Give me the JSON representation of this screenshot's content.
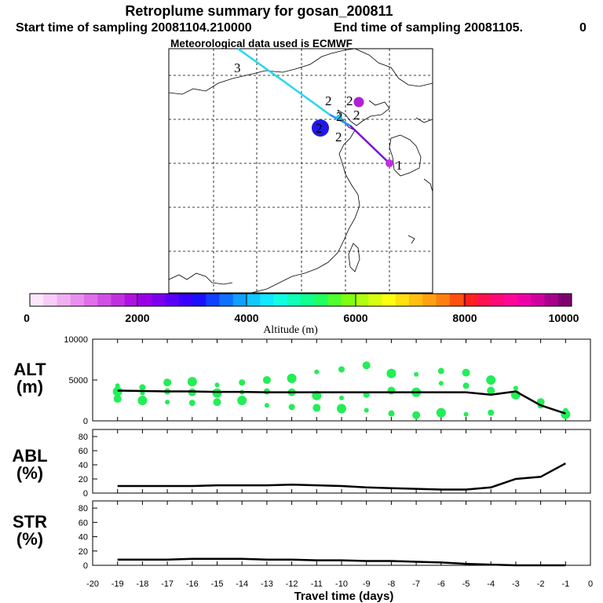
{
  "header": {
    "title": "Retroplume summary for gosan_200811",
    "start_label": "Start time of sampling 20081104.210000",
    "end_label": "End time of sampling 20081105.",
    "end_suffix": "0",
    "met_label": "Meteorological data used is ECMWF"
  },
  "map": {
    "trajectory_colors": [
      "#2a8cff",
      "#7a10d8",
      "#22d8ee"
    ],
    "cluster_labels": [
      "1",
      "2",
      "2",
      "2",
      "2",
      "2",
      "2",
      "3"
    ]
  },
  "colorbar": {
    "xlabel": "Altitude (m)",
    "tick_labels": [
      "0",
      "2000",
      "4000",
      "6000",
      "8000",
      "10000"
    ],
    "colors": [
      "#fde6fd",
      "#f8ccf8",
      "#f0b0f0",
      "#e890ee",
      "#e070e8",
      "#d050e4",
      "#c030e0",
      "#b010e0",
      "#9a00e6",
      "#7a00ee",
      "#5a00f6",
      "#3a00ff",
      "#1a10ff",
      "#1040ff",
      "#1070ff",
      "#10a0ff",
      "#10c8ff",
      "#10e8ff",
      "#10ffe0",
      "#10ffb8",
      "#10ff90",
      "#20ff60",
      "#50ff30",
      "#80ff10",
      "#b0ff10",
      "#d8ff10",
      "#ffff10",
      "#ffe010",
      "#ffc010",
      "#ffa010",
      "#ff8010",
      "#ff5010",
      "#ff2020",
      "#ff1050",
      "#ff0878",
      "#ff0898",
      "#f000a8",
      "#d000a0",
      "#a8008e",
      "#800070"
    ]
  },
  "chart_data": [
    {
      "type": "line",
      "id": "alt",
      "ylabel": "ALT\n(m)",
      "ylim": [
        0,
        10000
      ],
      "y_ticks": [
        0,
        5000,
        10000
      ],
      "x": [
        -19,
        -18,
        -17,
        -16,
        -15,
        -14,
        -13,
        -12,
        -11,
        -10,
        -9,
        -8,
        -7,
        -6,
        -5,
        -4,
        -3,
        -2,
        -1
      ],
      "values": [
        3700,
        3650,
        3600,
        3600,
        3550,
        3550,
        3500,
        3500,
        3500,
        3500,
        3500,
        3500,
        3500,
        3500,
        3500,
        3200,
        3600,
        1900,
        900
      ],
      "scatter": [
        {
          "x": -19,
          "y": 4300
        },
        {
          "x": -19,
          "y": 3600
        },
        {
          "x": -19,
          "y": 2700
        },
        {
          "x": -18,
          "y": 4100
        },
        {
          "x": -18,
          "y": 3400
        },
        {
          "x": -18,
          "y": 2500
        },
        {
          "x": -17,
          "y": 4700
        },
        {
          "x": -17,
          "y": 3600
        },
        {
          "x": -17,
          "y": 2300
        },
        {
          "x": -16,
          "y": 4800
        },
        {
          "x": -16,
          "y": 3500
        },
        {
          "x": -16,
          "y": 2200
        },
        {
          "x": -15,
          "y": 4400
        },
        {
          "x": -15,
          "y": 3400
        },
        {
          "x": -15,
          "y": 2300
        },
        {
          "x": -14,
          "y": 4700
        },
        {
          "x": -14,
          "y": 3500
        },
        {
          "x": -14,
          "y": 2500
        },
        {
          "x": -13,
          "y": 5000
        },
        {
          "x": -13,
          "y": 3600
        },
        {
          "x": -13,
          "y": 1900
        },
        {
          "x": -12,
          "y": 5200
        },
        {
          "x": -12,
          "y": 3500
        },
        {
          "x": -12,
          "y": 1700
        },
        {
          "x": -11,
          "y": 6000
        },
        {
          "x": -11,
          "y": 3100
        },
        {
          "x": -11,
          "y": 1600
        },
        {
          "x": -10,
          "y": 6300
        },
        {
          "x": -10,
          "y": 2800
        },
        {
          "x": -10,
          "y": 1500
        },
        {
          "x": -9,
          "y": 6800
        },
        {
          "x": -9,
          "y": 3200
        },
        {
          "x": -9,
          "y": 1300
        },
        {
          "x": -8,
          "y": 5800
        },
        {
          "x": -8,
          "y": 3700
        },
        {
          "x": -8,
          "y": 900
        },
        {
          "x": -7,
          "y": 5700
        },
        {
          "x": -7,
          "y": 3500
        },
        {
          "x": -7,
          "y": 700
        },
        {
          "x": -6,
          "y": 6100
        },
        {
          "x": -6,
          "y": 4600
        },
        {
          "x": -6,
          "y": 1000
        },
        {
          "x": -5,
          "y": 5900
        },
        {
          "x": -5,
          "y": 4300
        },
        {
          "x": -5,
          "y": 800
        },
        {
          "x": -4,
          "y": 5000
        },
        {
          "x": -4,
          "y": 3700
        },
        {
          "x": -4,
          "y": 1000
        },
        {
          "x": -3,
          "y": 4000
        },
        {
          "x": -3,
          "y": 3200
        },
        {
          "x": -2,
          "y": 2300
        },
        {
          "x": -2,
          "y": 1900
        },
        {
          "x": -1,
          "y": 1300
        },
        {
          "x": -1,
          "y": 800
        }
      ],
      "scatter_color": "#22ee55"
    },
    {
      "type": "line",
      "id": "abl",
      "ylabel": "ABL\n(%)",
      "ylim": [
        0,
        90
      ],
      "y_ticks": [
        0,
        20,
        40,
        60,
        80
      ],
      "x": [
        -19,
        -18,
        -17,
        -16,
        -15,
        -14,
        -13,
        -12,
        -11,
        -10,
        -9,
        -8,
        -7,
        -6,
        -5,
        -4,
        -3,
        -2,
        -1
      ],
      "values": [
        10,
        10,
        10,
        10,
        11,
        11,
        11,
        12,
        11,
        10,
        8,
        7,
        6,
        5,
        5,
        8,
        20,
        23,
        42
      ]
    },
    {
      "type": "line",
      "id": "str",
      "ylabel": "STR\n(%)",
      "ylim": [
        0,
        90
      ],
      "y_ticks": [
        0,
        20,
        40,
        60,
        80
      ],
      "x": [
        -19,
        -18,
        -17,
        -16,
        -15,
        -14,
        -13,
        -12,
        -11,
        -10,
        -9,
        -8,
        -7,
        -6,
        -5,
        -4,
        -3,
        -2,
        -1
      ],
      "values": [
        8,
        8,
        8,
        9,
        9,
        9,
        8,
        8,
        7,
        7,
        6,
        6,
        5,
        4,
        2,
        1,
        0,
        0,
        0
      ],
      "xlabel": "Travel time (days)",
      "x_ticks": [
        -20,
        -19,
        -18,
        -17,
        -16,
        -15,
        -14,
        -13,
        -12,
        -11,
        -10,
        -9,
        -8,
        -7,
        -6,
        -5,
        -4,
        -3,
        -2,
        -1,
        0
      ]
    }
  ]
}
